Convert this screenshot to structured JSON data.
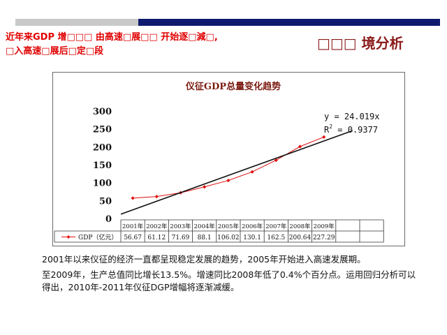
{
  "header": {
    "headline_line1": "近年来GDP 增□□□ 由高速□展□□ 开始逐□減□,",
    "headline_line2": "□入高速□展后□定□段",
    "section_title": "□□□ 境分析"
  },
  "chart_data": {
    "type": "line",
    "title": "仪征GDP总量变化趋势",
    "categories": [
      "2001年",
      "2002年",
      "2003年",
      "2004年",
      "2005年",
      "2006年",
      "2007年",
      "2008年",
      "2009年"
    ],
    "series": [
      {
        "name": "GDP（亿元）",
        "values": [
          56.67,
          61.12,
          71.69,
          88.1,
          106.02,
          130.1,
          162.5,
          200.64,
          227.29
        ]
      }
    ],
    "table_values": [
      "56.67",
      "61.12",
      "71.69",
      "88.1",
      "106.02",
      "130.1",
      "162.5",
      "200.64",
      "227.29"
    ],
    "trendline": {
      "equation": "y = 24.019x",
      "r2_label": "R",
      "r2_exp": "2",
      "r2_value": " = 0.9377",
      "slope": 24.019
    },
    "y_ticks": [
      "300",
      "250",
      "200",
      "150",
      "100",
      "50",
      "0"
    ],
    "ylim": [
      0,
      300
    ],
    "grid": false,
    "legend": "data-table",
    "colors": {
      "series": "#e01010",
      "trend": "#111111",
      "title": "#7a1a10"
    }
  },
  "caption": {
    "para1": "2001年以来仪征的经济一直都呈现稳定发展的趋势，2005年开始进入高速发展期。",
    "para2": "至2009年，生产总值同比增长13.5%。增速同比2008年低了0.4%个百分点。运用回归分析可以得出，2010年-2011年仪征DGP增幅将逐渐减缓。"
  },
  "colors": {
    "gray_bar": "#c9c9c9",
    "navy_bar": "#0f1a6e",
    "headline": "#e00000",
    "section_title": "#8b1a1a"
  }
}
